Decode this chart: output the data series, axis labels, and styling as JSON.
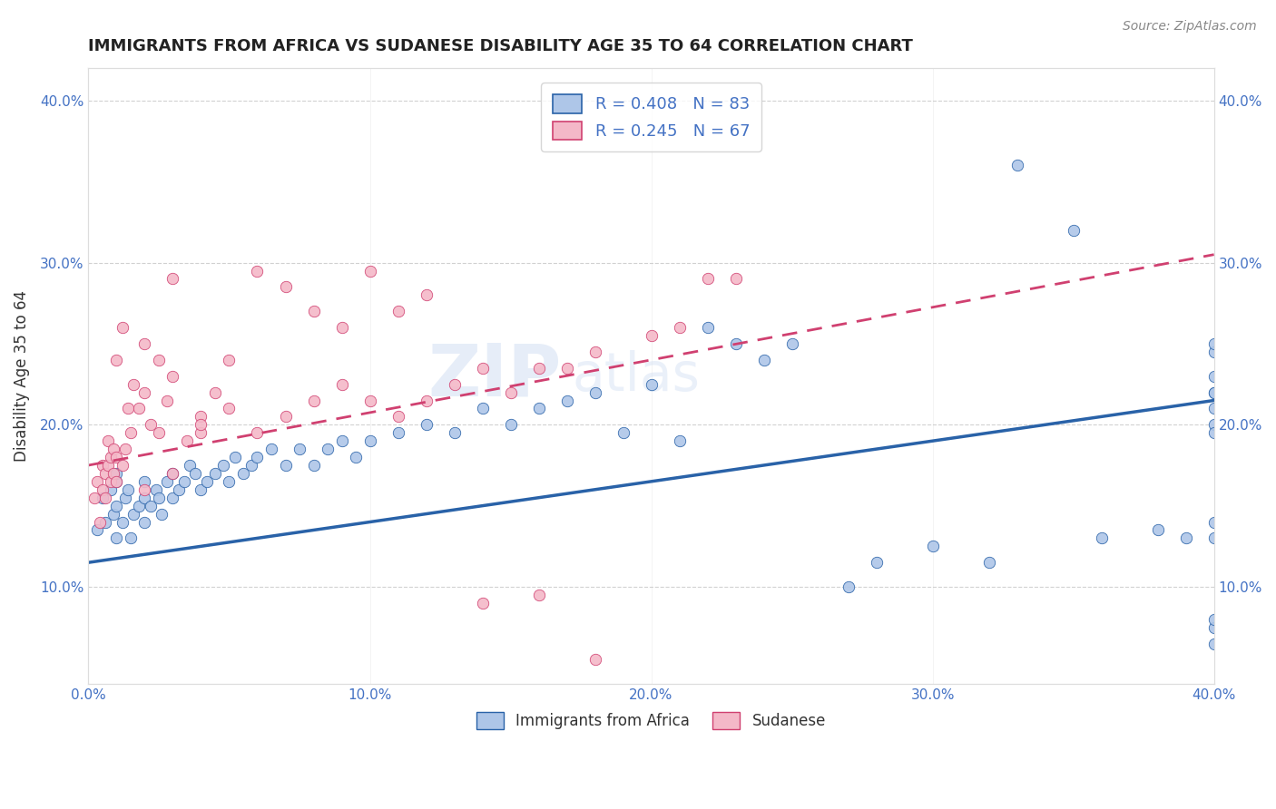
{
  "title": "IMMIGRANTS FROM AFRICA VS SUDANESE DISABILITY AGE 35 TO 64 CORRELATION CHART",
  "source": "Source: ZipAtlas.com",
  "xlabel": "",
  "ylabel": "Disability Age 35 to 64",
  "legend_label_1": "Immigrants from Africa",
  "legend_label_2": "Sudanese",
  "r1": 0.408,
  "n1": 83,
  "r2": 0.245,
  "n2": 67,
  "color1": "#aec6e8",
  "color2": "#f4b8c8",
  "line_color1": "#2962a8",
  "line_color2": "#d04070",
  "watermark": "ZIPatlas",
  "xlim": [
    0.0,
    0.4
  ],
  "ylim": [
    0.04,
    0.42
  ],
  "xticks": [
    0.0,
    0.1,
    0.2,
    0.3,
    0.4
  ],
  "yticks": [
    0.1,
    0.2,
    0.3,
    0.4
  ],
  "xticklabels": [
    "0.0%",
    "10.0%",
    "20.0%",
    "30.0%",
    "40.0%"
  ],
  "yticklabels": [
    "10.0%",
    "20.0%",
    "30.0%",
    "40.0%"
  ],
  "background_color": "#ffffff",
  "grid_color": "#cccccc",
  "title_color": "#222222",
  "tick_color": "#4472c4",
  "scatter1_x": [
    0.003,
    0.005,
    0.006,
    0.008,
    0.009,
    0.01,
    0.01,
    0.01,
    0.01,
    0.012,
    0.013,
    0.014,
    0.015,
    0.016,
    0.018,
    0.02,
    0.02,
    0.02,
    0.022,
    0.024,
    0.025,
    0.026,
    0.028,
    0.03,
    0.03,
    0.032,
    0.034,
    0.036,
    0.038,
    0.04,
    0.042,
    0.045,
    0.048,
    0.05,
    0.052,
    0.055,
    0.058,
    0.06,
    0.065,
    0.07,
    0.075,
    0.08,
    0.085,
    0.09,
    0.095,
    0.1,
    0.11,
    0.12,
    0.13,
    0.14,
    0.15,
    0.16,
    0.17,
    0.18,
    0.19,
    0.2,
    0.21,
    0.22,
    0.23,
    0.24,
    0.25,
    0.27,
    0.28,
    0.3,
    0.32,
    0.33,
    0.35,
    0.36,
    0.38,
    0.39,
    0.4,
    0.4,
    0.4,
    0.4,
    0.4,
    0.4,
    0.4,
    0.4,
    0.4,
    0.4,
    0.4,
    0.4,
    0.4
  ],
  "scatter1_y": [
    0.135,
    0.155,
    0.14,
    0.16,
    0.145,
    0.13,
    0.15,
    0.165,
    0.17,
    0.14,
    0.155,
    0.16,
    0.13,
    0.145,
    0.15,
    0.14,
    0.155,
    0.165,
    0.15,
    0.16,
    0.155,
    0.145,
    0.165,
    0.155,
    0.17,
    0.16,
    0.165,
    0.175,
    0.17,
    0.16,
    0.165,
    0.17,
    0.175,
    0.165,
    0.18,
    0.17,
    0.175,
    0.18,
    0.185,
    0.175,
    0.185,
    0.175,
    0.185,
    0.19,
    0.18,
    0.19,
    0.195,
    0.2,
    0.195,
    0.21,
    0.2,
    0.21,
    0.215,
    0.22,
    0.195,
    0.225,
    0.19,
    0.26,
    0.25,
    0.24,
    0.25,
    0.1,
    0.115,
    0.125,
    0.115,
    0.36,
    0.32,
    0.13,
    0.135,
    0.13,
    0.21,
    0.22,
    0.23,
    0.245,
    0.25,
    0.22,
    0.2,
    0.195,
    0.065,
    0.075,
    0.13,
    0.14,
    0.08
  ],
  "scatter2_x": [
    0.002,
    0.003,
    0.004,
    0.005,
    0.005,
    0.006,
    0.006,
    0.007,
    0.007,
    0.008,
    0.008,
    0.009,
    0.009,
    0.01,
    0.01,
    0.01,
    0.012,
    0.012,
    0.013,
    0.014,
    0.015,
    0.016,
    0.018,
    0.02,
    0.02,
    0.022,
    0.025,
    0.028,
    0.03,
    0.03,
    0.04,
    0.04,
    0.05,
    0.06,
    0.07,
    0.08,
    0.09,
    0.1,
    0.11,
    0.12,
    0.13,
    0.14,
    0.15,
    0.16,
    0.17,
    0.18,
    0.2,
    0.21,
    0.22,
    0.23,
    0.02,
    0.025,
    0.03,
    0.035,
    0.04,
    0.045,
    0.05,
    0.06,
    0.07,
    0.08,
    0.09,
    0.1,
    0.11,
    0.12,
    0.14,
    0.16,
    0.18
  ],
  "scatter2_y": [
    0.155,
    0.165,
    0.14,
    0.16,
    0.175,
    0.155,
    0.17,
    0.175,
    0.19,
    0.165,
    0.18,
    0.17,
    0.185,
    0.18,
    0.165,
    0.24,
    0.175,
    0.26,
    0.185,
    0.21,
    0.195,
    0.225,
    0.21,
    0.16,
    0.22,
    0.2,
    0.195,
    0.215,
    0.23,
    0.29,
    0.195,
    0.205,
    0.21,
    0.195,
    0.205,
    0.215,
    0.225,
    0.215,
    0.205,
    0.215,
    0.225,
    0.235,
    0.22,
    0.235,
    0.235,
    0.245,
    0.255,
    0.26,
    0.29,
    0.29,
    0.25,
    0.24,
    0.17,
    0.19,
    0.2,
    0.22,
    0.24,
    0.295,
    0.285,
    0.27,
    0.26,
    0.295,
    0.27,
    0.28,
    0.09,
    0.095,
    0.055
  ],
  "line1_x": [
    0.0,
    0.4
  ],
  "line1_y": [
    0.115,
    0.215
  ],
  "line2_x": [
    0.0,
    0.4
  ],
  "line2_y": [
    0.175,
    0.305
  ]
}
